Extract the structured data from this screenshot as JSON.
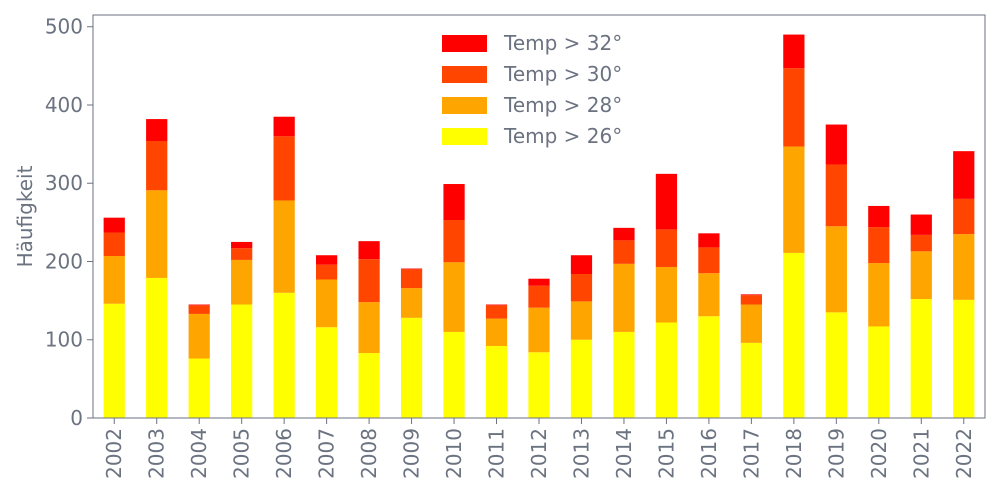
{
  "chart_data": {
    "type": "bar",
    "stacked": true,
    "title": "",
    "xlabel": "",
    "ylabel": "Häufigkeit",
    "ylim": [
      0,
      515
    ],
    "yticks": [
      0,
      100,
      200,
      300,
      400,
      500
    ],
    "grid": false,
    "legend_position": "top-center",
    "categories": [
      "2002",
      "2003",
      "2004",
      "2005",
      "2006",
      "2007",
      "2008",
      "2009",
      "2010",
      "2011",
      "2012",
      "2013",
      "2014",
      "2015",
      "2016",
      "2017",
      "2018",
      "2019",
      "2020",
      "2021",
      "2022"
    ],
    "series": [
      {
        "name": "Temp > 26°",
        "color": "#ffff00",
        "values": [
          146,
          179,
          76,
          145,
          160,
          116,
          83,
          128,
          110,
          92,
          84,
          100,
          110,
          122,
          130,
          96,
          211,
          135,
          117,
          152,
          151
        ]
      },
      {
        "name": "Temp > 28°",
        "color": "#ffa500",
        "values": [
          61,
          112,
          57,
          57,
          118,
          61,
          65,
          38,
          89,
          35,
          57,
          49,
          87,
          71,
          55,
          49,
          136,
          110,
          81,
          61,
          84
        ]
      },
      {
        "name": "Temp > 30°",
        "color": "#ff4500",
        "values": [
          30,
          63,
          11,
          15,
          82,
          19,
          55,
          24,
          54,
          17,
          28,
          35,
          30,
          48,
          33,
          12,
          100,
          79,
          46,
          21,
          45
        ]
      },
      {
        "name": "Temp > 32°",
        "color": "#ff0000",
        "values": [
          19,
          28,
          1,
          8,
          25,
          12,
          23,
          1,
          46,
          1,
          9,
          24,
          16,
          71,
          18,
          1,
          43,
          51,
          27,
          26,
          61
        ]
      }
    ],
    "legend_order": [
      "Temp > 32°",
      "Temp > 30°",
      "Temp > 28°",
      "Temp > 26°"
    ],
    "axis_color": "#6b7280"
  }
}
